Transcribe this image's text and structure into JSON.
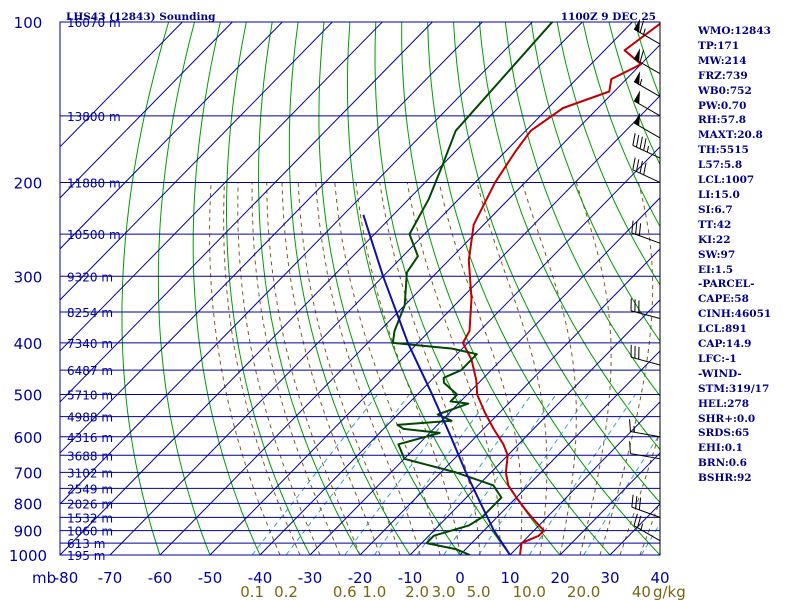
{
  "header": {
    "title": "LHS43 (12843) Sounding",
    "valid_time": "1100Z  9 DEC 25"
  },
  "indices": [
    "WMO:12843",
    "TP:171",
    "MW:214",
    "FRZ:739",
    "WB0:752",
    "PW:0.70",
    "RH:57.8",
    "MAXT:20.8",
    "TH:5515",
    "L57:5.8",
    "LCL:1007",
    "LI:15.0",
    "SI:6.7",
    "TT:42",
    "KI:22",
    "SW:97",
    "EI:1.5",
    "-PARCEL-",
    "CAPE:58",
    "CINH:46051",
    "LCL:891",
    "CAP:14.9",
    "LFC:-1",
    "-WIND-",
    "STM:319/17",
    "HEL:278",
    "SHR+:0.0",
    "SRDS:65",
    "EHI:0.1",
    "BRN:0.6",
    "BSHR:92"
  ],
  "colors": {
    "frame": "#00009c",
    "dry_adiabat": "#009a00",
    "moist_adiabat": "#7a5a1e",
    "mixing_ratio": "#3aa0c8",
    "temperature": "#c00000",
    "dewpoint": "#004800",
    "parcel": "#1010a0",
    "mixing_label": "#7a6410"
  },
  "chart_data": {
    "type": "line",
    "title": "LHS43 (12843) Sounding",
    "xlabel": "",
    "ylabel": "mb",
    "xlim": [
      -80,
      40
    ],
    "ylim": [
      1000,
      100
    ],
    "y_scale": "log (pressure)",
    "grid": true,
    "pressure_ticks": [
      {
        "p": 100,
        "label": "100"
      },
      {
        "p": 200,
        "label": "200"
      },
      {
        "p": 300,
        "label": "300"
      },
      {
        "p": 400,
        "label": "400"
      },
      {
        "p": 500,
        "label": "500"
      },
      {
        "p": 600,
        "label": "600"
      },
      {
        "p": 700,
        "label": "700"
      },
      {
        "p": 800,
        "label": "800"
      },
      {
        "p": 900,
        "label": "900"
      },
      {
        "p": 1000,
        "label": "1000"
      }
    ],
    "temperature_ticks": [
      {
        "t": -80,
        "label": "-80"
      },
      {
        "t": -70,
        "label": "-70"
      },
      {
        "t": -60,
        "label": "-60"
      },
      {
        "t": -50,
        "label": "-50"
      },
      {
        "t": -40,
        "label": "-40"
      },
      {
        "t": -30,
        "label": "-30"
      },
      {
        "t": -20,
        "label": "-20"
      },
      {
        "t": -10,
        "label": "-10"
      },
      {
        "t": 0,
        "label": "0"
      },
      {
        "t": 10,
        "label": "10"
      },
      {
        "t": 20,
        "label": "20"
      },
      {
        "t": 30,
        "label": "30"
      },
      {
        "t": 40,
        "label": "40"
      }
    ],
    "height_labels": [
      {
        "p": 100,
        "label": "16070 m"
      },
      {
        "p": 150,
        "label": "13800 m"
      },
      {
        "p": 200,
        "label": "11880 m"
      },
      {
        "p": 250,
        "label": "10500 m"
      },
      {
        "p": 300,
        "label": "9320 m"
      },
      {
        "p": 350,
        "label": "8254 m"
      },
      {
        "p": 400,
        "label": "7340 m"
      },
      {
        "p": 450,
        "label": "6487 m"
      },
      {
        "p": 500,
        "label": "5710 m"
      },
      {
        "p": 550,
        "label": "4988 m"
      },
      {
        "p": 600,
        "label": "4316 m"
      },
      {
        "p": 650,
        "label": "3688 m"
      },
      {
        "p": 700,
        "label": "3102 m"
      },
      {
        "p": 750,
        "label": "2549 m"
      },
      {
        "p": 800,
        "label": "2026 m"
      },
      {
        "p": 850,
        "label": "1532 m"
      },
      {
        "p": 900,
        "label": "1060 m"
      },
      {
        "p": 950,
        "label": "613 m"
      },
      {
        "p": 1000,
        "label": "195 m"
      }
    ],
    "mixing_ratio_labels": [
      "0.1",
      "0.2",
      "0.6",
      "1.0",
      "2.0",
      "3.0",
      "5.0",
      "10.0",
      "20.0",
      "40",
      "g/kg"
    ],
    "mixing_ratio_values": [
      0.1,
      0.2,
      0.6,
      1.0,
      2.0,
      3.0,
      5.0,
      10.0,
      20.0,
      40.0
    ],
    "series": [
      {
        "key": "temperature",
        "points": [
          [
            100,
            -64
          ],
          [
            113,
            -66
          ],
          [
            120,
            -60
          ],
          [
            128,
            -63
          ],
          [
            135,
            -61
          ],
          [
            145,
            -67
          ],
          [
            160,
            -69
          ],
          [
            175,
            -68
          ],
          [
            200,
            -66
          ],
          [
            240,
            -62
          ],
          [
            280,
            -56
          ],
          [
            330,
            -48
          ],
          [
            380,
            -42
          ],
          [
            400,
            -41
          ],
          [
            430,
            -36
          ],
          [
            470,
            -31
          ],
          [
            500,
            -28
          ],
          [
            540,
            -23
          ],
          [
            580,
            -18
          ],
          [
            620,
            -13
          ],
          [
            650,
            -10
          ],
          [
            700,
            -7
          ],
          [
            740,
            -4
          ],
          [
            780,
            0
          ],
          [
            820,
            4
          ],
          [
            850,
            7
          ],
          [
            880,
            10
          ],
          [
            900,
            12
          ],
          [
            920,
            12
          ],
          [
            950,
            10
          ],
          [
            975,
            11
          ],
          [
            1000,
            12
          ]
        ]
      },
      {
        "key": "dewpoint",
        "points": [
          [
            100,
            -86
          ],
          [
            160,
            -84
          ],
          [
            185,
            -80
          ],
          [
            215,
            -76
          ],
          [
            250,
            -73
          ],
          [
            275,
            -67
          ],
          [
            295,
            -66
          ],
          [
            340,
            -60
          ],
          [
            380,
            -57
          ],
          [
            400,
            -55
          ],
          [
            410,
            -42
          ],
          [
            420,
            -36
          ],
          [
            450,
            -36
          ],
          [
            465,
            -38
          ],
          [
            475,
            -37
          ],
          [
            500,
            -32
          ],
          [
            515,
            -32
          ],
          [
            520,
            -28
          ],
          [
            545,
            -32
          ],
          [
            560,
            -28
          ],
          [
            570,
            -38
          ],
          [
            580,
            -36
          ],
          [
            590,
            -28
          ],
          [
            620,
            -34
          ],
          [
            660,
            -30
          ],
          [
            700,
            -17
          ],
          [
            740,
            -7
          ],
          [
            780,
            -3
          ],
          [
            850,
            -3
          ],
          [
            880,
            -4
          ],
          [
            920,
            -9
          ],
          [
            950,
            -9
          ],
          [
            975,
            -2
          ],
          [
            1000,
            2
          ]
        ]
      },
      {
        "key": "parcel",
        "points": [
          [
            1000,
            10
          ],
          [
            900,
            2
          ],
          [
            800,
            -6
          ],
          [
            700,
            -15
          ],
          [
            600,
            -25
          ],
          [
            500,
            -37
          ],
          [
            400,
            -52
          ],
          [
            300,
            -70
          ],
          [
            250,
            -81
          ],
          [
            230,
            -86
          ]
        ]
      }
    ],
    "wind_barbs": [
      {
        "p": 110,
        "dir": 300,
        "kt": 65
      },
      {
        "p": 125,
        "dir": 300,
        "kt": 60
      },
      {
        "p": 138,
        "dir": 300,
        "kt": 55
      },
      {
        "p": 150,
        "dir": 300,
        "kt": 50
      },
      {
        "p": 165,
        "dir": 300,
        "kt": 50
      },
      {
        "p": 180,
        "dir": 295,
        "kt": 45
      },
      {
        "p": 200,
        "dir": 295,
        "kt": 40
      },
      {
        "p": 260,
        "dir": 290,
        "kt": 30
      },
      {
        "p": 360,
        "dir": 285,
        "kt": 30
      },
      {
        "p": 440,
        "dir": 285,
        "kt": 30
      },
      {
        "p": 600,
        "dir": 280,
        "kt": 15
      },
      {
        "p": 660,
        "dir": 280,
        "kt": 10
      },
      {
        "p": 850,
        "dir": 290,
        "kt": 30
      },
      {
        "p": 940,
        "dir": 300,
        "kt": 25
      }
    ]
  }
}
